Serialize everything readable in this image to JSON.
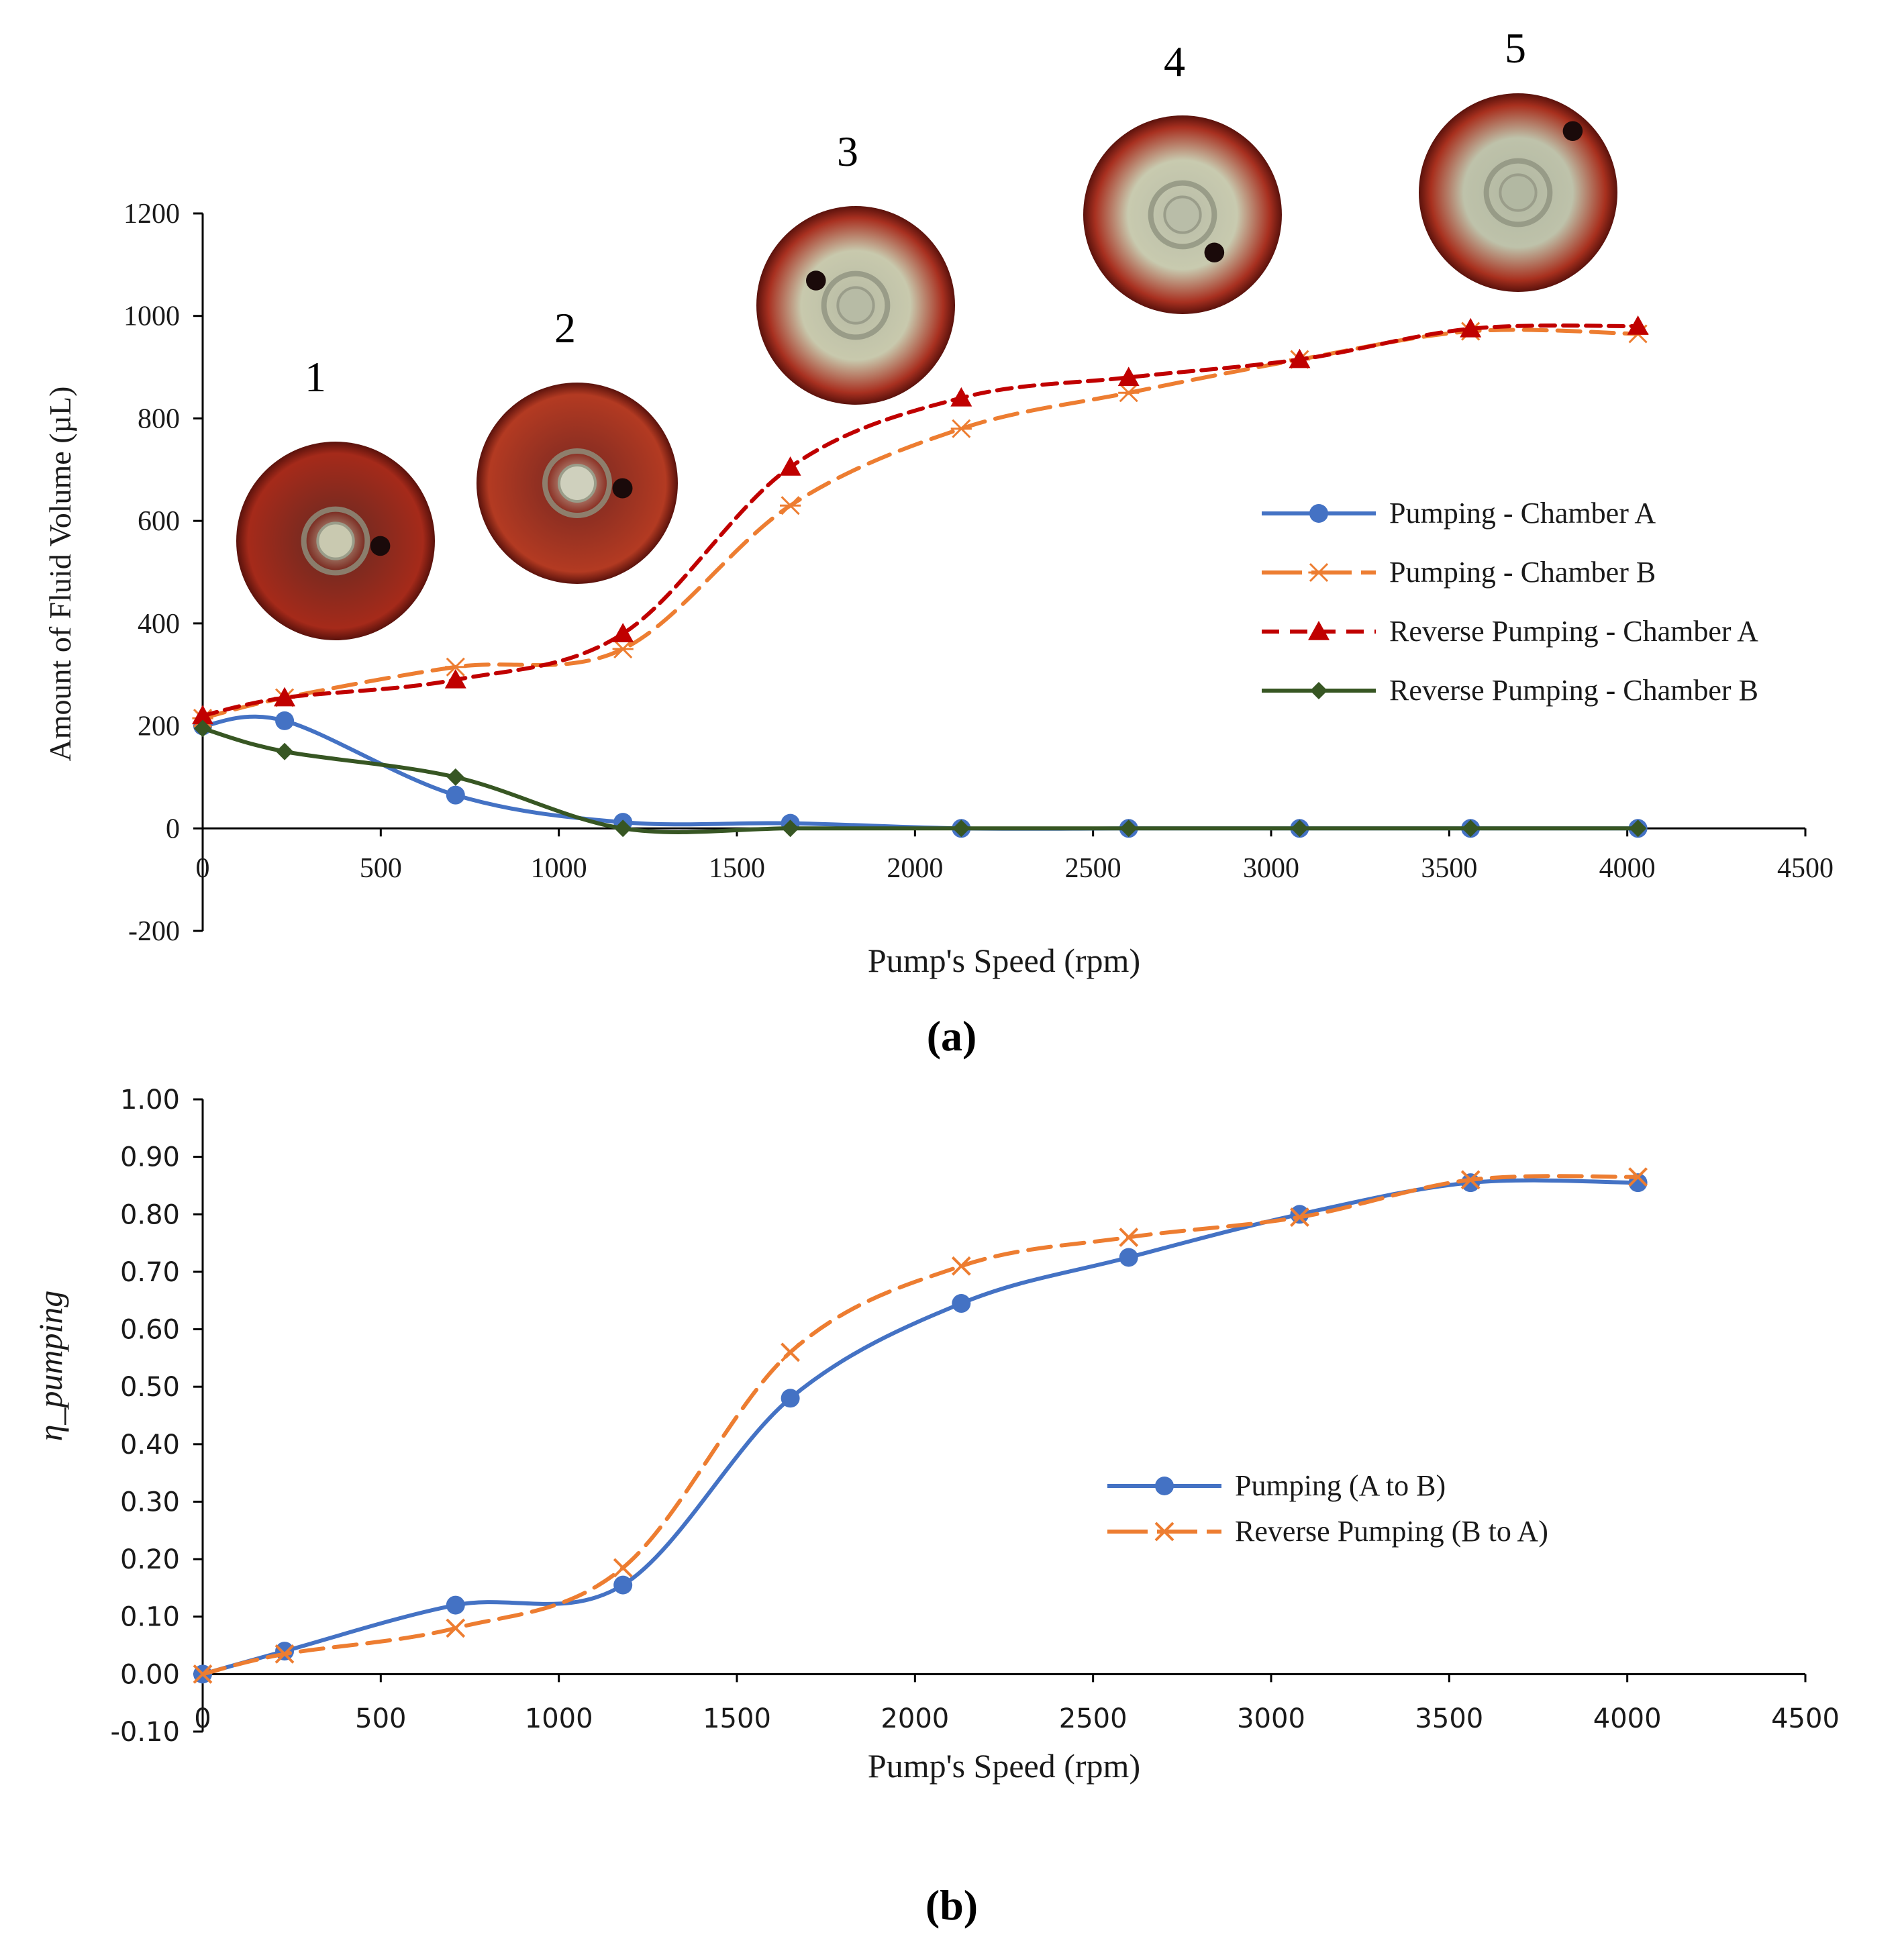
{
  "chart_data": [
    {
      "panel_label": "(a)",
      "type": "line",
      "xlabel": "Pump's Speed (rpm)",
      "ylabel": "Amount of Fluid Volume (µL)",
      "xlim": [
        0,
        4500
      ],
      "ylim": [
        -200,
        1200
      ],
      "xticks": [
        0,
        500,
        1000,
        1500,
        2000,
        2500,
        3000,
        3500,
        4000,
        4500
      ],
      "yticks": [
        -200,
        0,
        200,
        400,
        600,
        800,
        1000,
        1200
      ],
      "legend_position": "right",
      "x": [
        0,
        230,
        710,
        1180,
        1650,
        2130,
        2600,
        3080,
        3560,
        4030
      ],
      "series": [
        {
          "name": "Pumping - Chamber A",
          "color": "#4472C4",
          "marker": "circle",
          "dash": "solid",
          "values": [
            200,
            210,
            65,
            12,
            10,
            0,
            0,
            0,
            0,
            0
          ]
        },
        {
          "name": "Pumping - Chamber B",
          "color": "#ED7D31",
          "marker": "asterisk",
          "dash": "long-dash",
          "values": [
            215,
            255,
            315,
            350,
            630,
            780,
            850,
            915,
            970,
            965
          ]
        },
        {
          "name": "Reverse Pumping - Chamber A",
          "color": "#C00000",
          "marker": "triangle",
          "dash": "short-dash",
          "values": [
            220,
            255,
            290,
            380,
            705,
            840,
            880,
            915,
            975,
            980
          ]
        },
        {
          "name": "Reverse Pumping - Chamber B",
          "color": "#375623",
          "marker": "diamond",
          "dash": "solid",
          "values": [
            195,
            150,
            100,
            0,
            0,
            0,
            0,
            0,
            0,
            0
          ]
        }
      ],
      "annotations": [
        {
          "text": "1",
          "x": 380,
          "y": 930
        },
        {
          "text": "2",
          "x": 1050,
          "y": 930
        },
        {
          "text": "3",
          "x": 1830,
          "y": 1155
        },
        {
          "text": "4",
          "x": 2680,
          "y": 1200
        },
        {
          "text": "5",
          "x": 3640,
          "y": 1200
        }
      ],
      "inset_photos": [
        {
          "label": "1",
          "colors": {
            "rim": "#a52a1a",
            "fill": "#7a2a20",
            "center": "#c9c9b0",
            "spot": "#1a0a0a"
          }
        },
        {
          "label": "2",
          "colors": {
            "rim": "#b33a22",
            "fill": "#8a2e22",
            "center": "#cfd0bd",
            "spot": "#1a0a0a"
          }
        },
        {
          "label": "3",
          "colors": {
            "rim": "#a83020",
            "fill": "#c8c9ad",
            "center": "#b7bba5",
            "spot": "#1a0a0a"
          }
        },
        {
          "label": "4",
          "colors": {
            "rim": "#a83020",
            "fill": "#c8caaf",
            "center": "#b9bda8",
            "spot": "#1a0a0a"
          }
        },
        {
          "label": "5",
          "colors": {
            "rim": "#a8301e",
            "fill": "#bec2aa",
            "center": "#b2b8a2",
            "spot": "#1a0a0a"
          }
        }
      ]
    },
    {
      "panel_label": "(b)",
      "type": "line",
      "xlabel": "Pump's Speed (rpm)",
      "ylabel": "η_pumping",
      "xlim": [
        0,
        4500
      ],
      "ylim": [
        -0.1,
        1.0
      ],
      "xticks": [
        0,
        500,
        1000,
        1500,
        2000,
        2500,
        3000,
        3500,
        4000,
        4500
      ],
      "yticks": [
        "-0.10",
        "0.00",
        "0.10",
        "0.20",
        "0.30",
        "0.40",
        "0.50",
        "0.60",
        "0.70",
        "0.80",
        "0.90",
        "1.00"
      ],
      "legend_position": "center-right",
      "x": [
        0,
        230,
        710,
        1180,
        1650,
        2130,
        2600,
        3080,
        3560,
        4030
      ],
      "series": [
        {
          "name": "Pumping (A to B)",
          "color": "#4472C4",
          "marker": "circle",
          "dash": "solid",
          "values": [
            0.0,
            0.04,
            0.12,
            0.155,
            0.48,
            0.645,
            0.725,
            0.8,
            0.855,
            0.855
          ]
        },
        {
          "name": "Reverse Pumping (B to A)",
          "color": "#ED7D31",
          "marker": "x",
          "dash": "long-dash",
          "values": [
            0.0,
            0.035,
            0.08,
            0.185,
            0.56,
            0.71,
            0.76,
            0.795,
            0.86,
            0.865
          ]
        }
      ]
    }
  ]
}
